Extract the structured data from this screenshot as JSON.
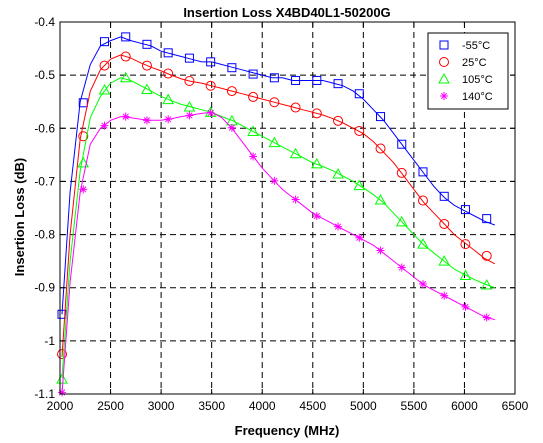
{
  "chart_data": {
    "type": "line",
    "title": "Insertion Loss  X4BD40L1-50200G",
    "xlabel": "Frequency (MHz)",
    "ylabel": "Insertion Loss (dB)",
    "xlim": [
      2000,
      6500
    ],
    "ylim": [
      -1.1,
      -0.4
    ],
    "x_ticks": [
      2000,
      2500,
      3000,
      3500,
      4000,
      4500,
      5000,
      5500,
      6000,
      6500
    ],
    "x_tick_labels": [
      "2000",
      "2500",
      "3000",
      "3500",
      "4000",
      "4500",
      "5000",
      "5500",
      "6000",
      "6500"
    ],
    "y_ticks": [
      -1.1,
      -1.0,
      -0.9,
      -0.8,
      -0.7,
      -0.6,
      -0.5,
      -0.4
    ],
    "y_tick_labels": [
      "-1.1",
      "-1",
      "-0.9",
      "-0.8",
      "-0.7",
      "-0.6",
      "-0.5",
      "-0.4"
    ],
    "grid": true,
    "legend_position": "top-right",
    "series": [
      {
        "name": "-55°C",
        "color": "#0000ff",
        "marker": "square",
        "x": [
          2020,
          2100,
          2200,
          2300,
          2400,
          2500,
          2600,
          2700,
          2800,
          2900,
          3000,
          3100,
          3200,
          3300,
          3400,
          3500,
          3600,
          3700,
          3800,
          3900,
          4000,
          4100,
          4200,
          4300,
          4400,
          4500,
          4600,
          4700,
          4800,
          4900,
          5000,
          5100,
          5200,
          5300,
          5400,
          5500,
          5600,
          5700,
          5800,
          5900,
          6000,
          6100,
          6200,
          6300
        ],
        "y": [
          -0.95,
          -0.72,
          -0.55,
          -0.48,
          -0.445,
          -0.435,
          -0.428,
          -0.435,
          -0.44,
          -0.445,
          -0.455,
          -0.46,
          -0.465,
          -0.47,
          -0.475,
          -0.475,
          -0.48,
          -0.485,
          -0.49,
          -0.495,
          -0.5,
          -0.505,
          -0.505,
          -0.51,
          -0.51,
          -0.51,
          -0.51,
          -0.515,
          -0.52,
          -0.53,
          -0.545,
          -0.565,
          -0.585,
          -0.61,
          -0.635,
          -0.66,
          -0.685,
          -0.71,
          -0.73,
          -0.745,
          -0.755,
          -0.765,
          -0.775,
          -0.782
        ],
        "marker_x": [
          2020,
          2230,
          2440,
          2650,
          2860,
          3070,
          3280,
          3490,
          3700,
          3910,
          4120,
          4330,
          4540,
          4750,
          4960,
          5170,
          5380,
          5590,
          5800,
          6010,
          6220
        ],
        "marker_y": [
          -0.95,
          -0.552,
          -0.437,
          -0.428,
          -0.442,
          -0.458,
          -0.468,
          -0.475,
          -0.486,
          -0.498,
          -0.505,
          -0.51,
          -0.51,
          -0.516,
          -0.535,
          -0.578,
          -0.63,
          -0.682,
          -0.728,
          -0.753,
          -0.77
        ]
      },
      {
        "name": "25°C",
        "color": "#ff0000",
        "marker": "circle",
        "x": [
          2020,
          2100,
          2200,
          2300,
          2400,
          2500,
          2600,
          2700,
          2800,
          2900,
          3000,
          3100,
          3200,
          3300,
          3400,
          3500,
          3600,
          3700,
          3800,
          3900,
          4000,
          4100,
          4200,
          4300,
          4400,
          4500,
          4600,
          4700,
          4800,
          4900,
          5000,
          5100,
          5200,
          5300,
          5400,
          5500,
          5600,
          5700,
          5800,
          5900,
          6000,
          6100,
          6200,
          6300
        ],
        "y": [
          -1.03,
          -0.8,
          -0.62,
          -0.53,
          -0.49,
          -0.47,
          -0.462,
          -0.468,
          -0.477,
          -0.485,
          -0.492,
          -0.5,
          -0.507,
          -0.512,
          -0.515,
          -0.52,
          -0.525,
          -0.53,
          -0.535,
          -0.54,
          -0.545,
          -0.55,
          -0.555,
          -0.56,
          -0.565,
          -0.57,
          -0.575,
          -0.582,
          -0.59,
          -0.6,
          -0.61,
          -0.625,
          -0.645,
          -0.665,
          -0.69,
          -0.715,
          -0.74,
          -0.76,
          -0.78,
          -0.8,
          -0.815,
          -0.83,
          -0.845,
          -0.855
        ],
        "marker_x": [
          2020,
          2230,
          2440,
          2650,
          2860,
          3070,
          3280,
          3490,
          3700,
          3910,
          4120,
          4330,
          4540,
          4750,
          4960,
          5170,
          5380,
          5590,
          5800,
          6010,
          6220
        ],
        "marker_y": [
          -1.025,
          -0.615,
          -0.482,
          -0.465,
          -0.482,
          -0.497,
          -0.511,
          -0.52,
          -0.53,
          -0.541,
          -0.551,
          -0.561,
          -0.572,
          -0.586,
          -0.605,
          -0.638,
          -0.684,
          -0.736,
          -0.78,
          -0.818,
          -0.84
        ]
      },
      {
        "name": "105°C",
        "color": "#00ff00",
        "marker": "triangle",
        "x": [
          2020,
          2100,
          2200,
          2300,
          2400,
          2500,
          2600,
          2700,
          2800,
          2900,
          3000,
          3100,
          3200,
          3300,
          3400,
          3500,
          3600,
          3700,
          3800,
          3900,
          4000,
          4100,
          4200,
          4300,
          4400,
          4500,
          4600,
          4700,
          4800,
          4900,
          5000,
          5100,
          5200,
          5300,
          5400,
          5500,
          5600,
          5700,
          5800,
          5900,
          6000,
          6100,
          6200,
          6300
        ],
        "y": [
          -1.07,
          -0.85,
          -0.68,
          -0.58,
          -0.54,
          -0.515,
          -0.505,
          -0.51,
          -0.52,
          -0.53,
          -0.54,
          -0.548,
          -0.555,
          -0.56,
          -0.565,
          -0.57,
          -0.578,
          -0.585,
          -0.595,
          -0.605,
          -0.615,
          -0.625,
          -0.635,
          -0.645,
          -0.655,
          -0.665,
          -0.672,
          -0.68,
          -0.69,
          -0.7,
          -0.712,
          -0.725,
          -0.74,
          -0.76,
          -0.78,
          -0.8,
          -0.82,
          -0.835,
          -0.85,
          -0.865,
          -0.875,
          -0.885,
          -0.893,
          -0.9
        ],
        "marker_x": [
          2020,
          2230,
          2440,
          2650,
          2860,
          3070,
          3280,
          3490,
          3700,
          3910,
          4120,
          4330,
          4540,
          4750,
          4960,
          5170,
          5380,
          5590,
          5800,
          6010,
          6220
        ],
        "marker_y": [
          -1.072,
          -0.665,
          -0.528,
          -0.505,
          -0.527,
          -0.546,
          -0.56,
          -0.57,
          -0.586,
          -0.606,
          -0.627,
          -0.648,
          -0.667,
          -0.686,
          -0.708,
          -0.735,
          -0.776,
          -0.818,
          -0.85,
          -0.877,
          -0.895
        ]
      },
      {
        "name": "140°C",
        "color": "#ff00ff",
        "marker": "asterisk",
        "x": [
          2020,
          2100,
          2200,
          2300,
          2400,
          2500,
          2600,
          2700,
          2800,
          2900,
          3000,
          3100,
          3200,
          3300,
          3400,
          3500,
          3600,
          3700,
          3800,
          3900,
          4000,
          4100,
          4200,
          4300,
          4400,
          4500,
          4600,
          4700,
          4800,
          4900,
          5000,
          5100,
          5200,
          5300,
          5400,
          5500,
          5600,
          5700,
          5800,
          5900,
          6000,
          6100,
          6200,
          6300
        ],
        "y": [
          -1.1,
          -0.89,
          -0.72,
          -0.63,
          -0.6,
          -0.585,
          -0.578,
          -0.58,
          -0.583,
          -0.585,
          -0.585,
          -0.582,
          -0.578,
          -0.575,
          -0.572,
          -0.57,
          -0.58,
          -0.6,
          -0.625,
          -0.65,
          -0.675,
          -0.695,
          -0.715,
          -0.73,
          -0.745,
          -0.76,
          -0.77,
          -0.78,
          -0.79,
          -0.8,
          -0.81,
          -0.82,
          -0.835,
          -0.85,
          -0.865,
          -0.88,
          -0.895,
          -0.905,
          -0.915,
          -0.925,
          -0.935,
          -0.945,
          -0.955,
          -0.96
        ],
        "marker_x": [
          2020,
          2230,
          2440,
          2650,
          2860,
          3070,
          3280,
          3490,
          3700,
          3910,
          4120,
          4330,
          4540,
          4750,
          4960,
          5170,
          5380,
          5590,
          5800,
          6010,
          6220
        ],
        "marker_y": [
          -1.097,
          -0.715,
          -0.595,
          -0.578,
          -0.585,
          -0.583,
          -0.576,
          -0.571,
          -0.599,
          -0.653,
          -0.699,
          -0.734,
          -0.765,
          -0.785,
          -0.806,
          -0.83,
          -0.862,
          -0.893,
          -0.915,
          -0.936,
          -0.956
        ]
      }
    ]
  }
}
